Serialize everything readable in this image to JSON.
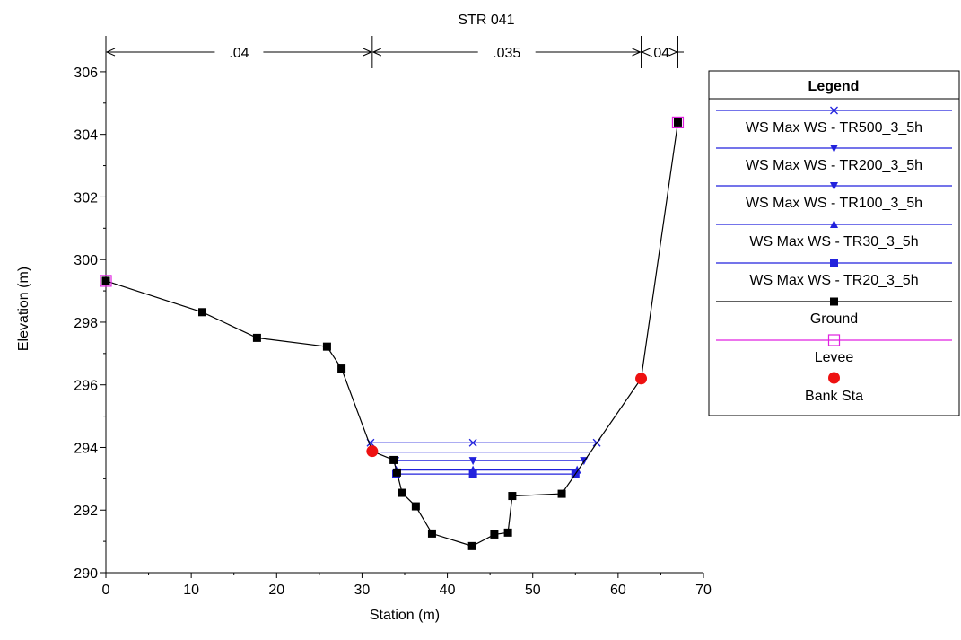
{
  "chart_data": {
    "type": "line",
    "title": "STR 041",
    "xlabel": "Station (m)",
    "ylabel": "Elevation (m)",
    "xlim": [
      0,
      70
    ],
    "ylim": [
      290,
      306.8
    ],
    "x_ticks": [
      0,
      10,
      20,
      30,
      40,
      50,
      60,
      70
    ],
    "y_ticks": [
      290,
      292,
      294,
      296,
      298,
      300,
      302,
      304,
      306
    ],
    "grid": false,
    "legend_title": "Legend",
    "legend_position": "right",
    "manning": [
      {
        "label": ".04",
        "from": 0,
        "to": 31.2
      },
      {
        "label": ".035",
        "from": 31.2,
        "to": 62.7
      },
      {
        "label": ".04",
        "from": 62.7,
        "to": 67.0
      }
    ],
    "series": [
      {
        "name": "WS Max WS - TR500_3_5h",
        "color": "#2222dd",
        "marker": "x",
        "x": [
          31.0,
          57.5
        ],
        "y": [
          294.15,
          294.15
        ],
        "marker_x": [
          31.0,
          43.0,
          57.5
        ]
      },
      {
        "name": "WS Max WS - TR200_3_5h",
        "color": "#2222dd",
        "marker": "tri-down",
        "x": [
          32.2,
          56.8
        ],
        "y": [
          293.85,
          293.85
        ],
        "marker_x": []
      },
      {
        "name": "WS Max WS - TR100_3_5h",
        "color": "#2222dd",
        "marker": "tri-down",
        "x": [
          33.9,
          56.0
        ],
        "y": [
          293.58,
          293.58
        ],
        "marker_x": [
          33.9,
          43.0,
          56.0
        ]
      },
      {
        "name": "WS Max WS - TR30_3_5h",
        "color": "#2222dd",
        "marker": "tri-up",
        "x": [
          34.0,
          55.2
        ],
        "y": [
          293.28,
          293.28
        ],
        "marker_x": [
          34.0,
          43.0,
          55.2
        ]
      },
      {
        "name": "WS Max WS - TR20_3_5h",
        "color": "#2222dd",
        "marker": "square",
        "x": [
          34.0,
          55.0
        ],
        "y": [
          293.15,
          293.15
        ],
        "marker_x": [
          34.0,
          43.0,
          55.0
        ]
      },
      {
        "name": "Ground",
        "color": "#000000",
        "marker": "square",
        "x": [
          0,
          11.3,
          17.7,
          25.9,
          27.6,
          31.2,
          33.7,
          34.1,
          34.7,
          36.3,
          38.2,
          42.9,
          45.5,
          47.1,
          47.6,
          53.4,
          62.7,
          67.0
        ],
        "y": [
          299.32,
          298.32,
          297.5,
          297.22,
          296.52,
          293.88,
          293.6,
          293.2,
          292.55,
          292.12,
          291.25,
          290.85,
          291.22,
          291.28,
          292.45,
          292.52,
          296.2,
          304.38
        ]
      },
      {
        "name": "Levee",
        "color": "#e020e0",
        "marker": "open-square",
        "x": [
          0,
          67.0
        ],
        "y": [
          299.32,
          304.38
        ]
      },
      {
        "name": "Bank Sta",
        "color": "#ee1111",
        "marker": "circle",
        "x": [
          31.2,
          62.7
        ],
        "y": [
          293.88,
          296.2
        ]
      }
    ]
  }
}
